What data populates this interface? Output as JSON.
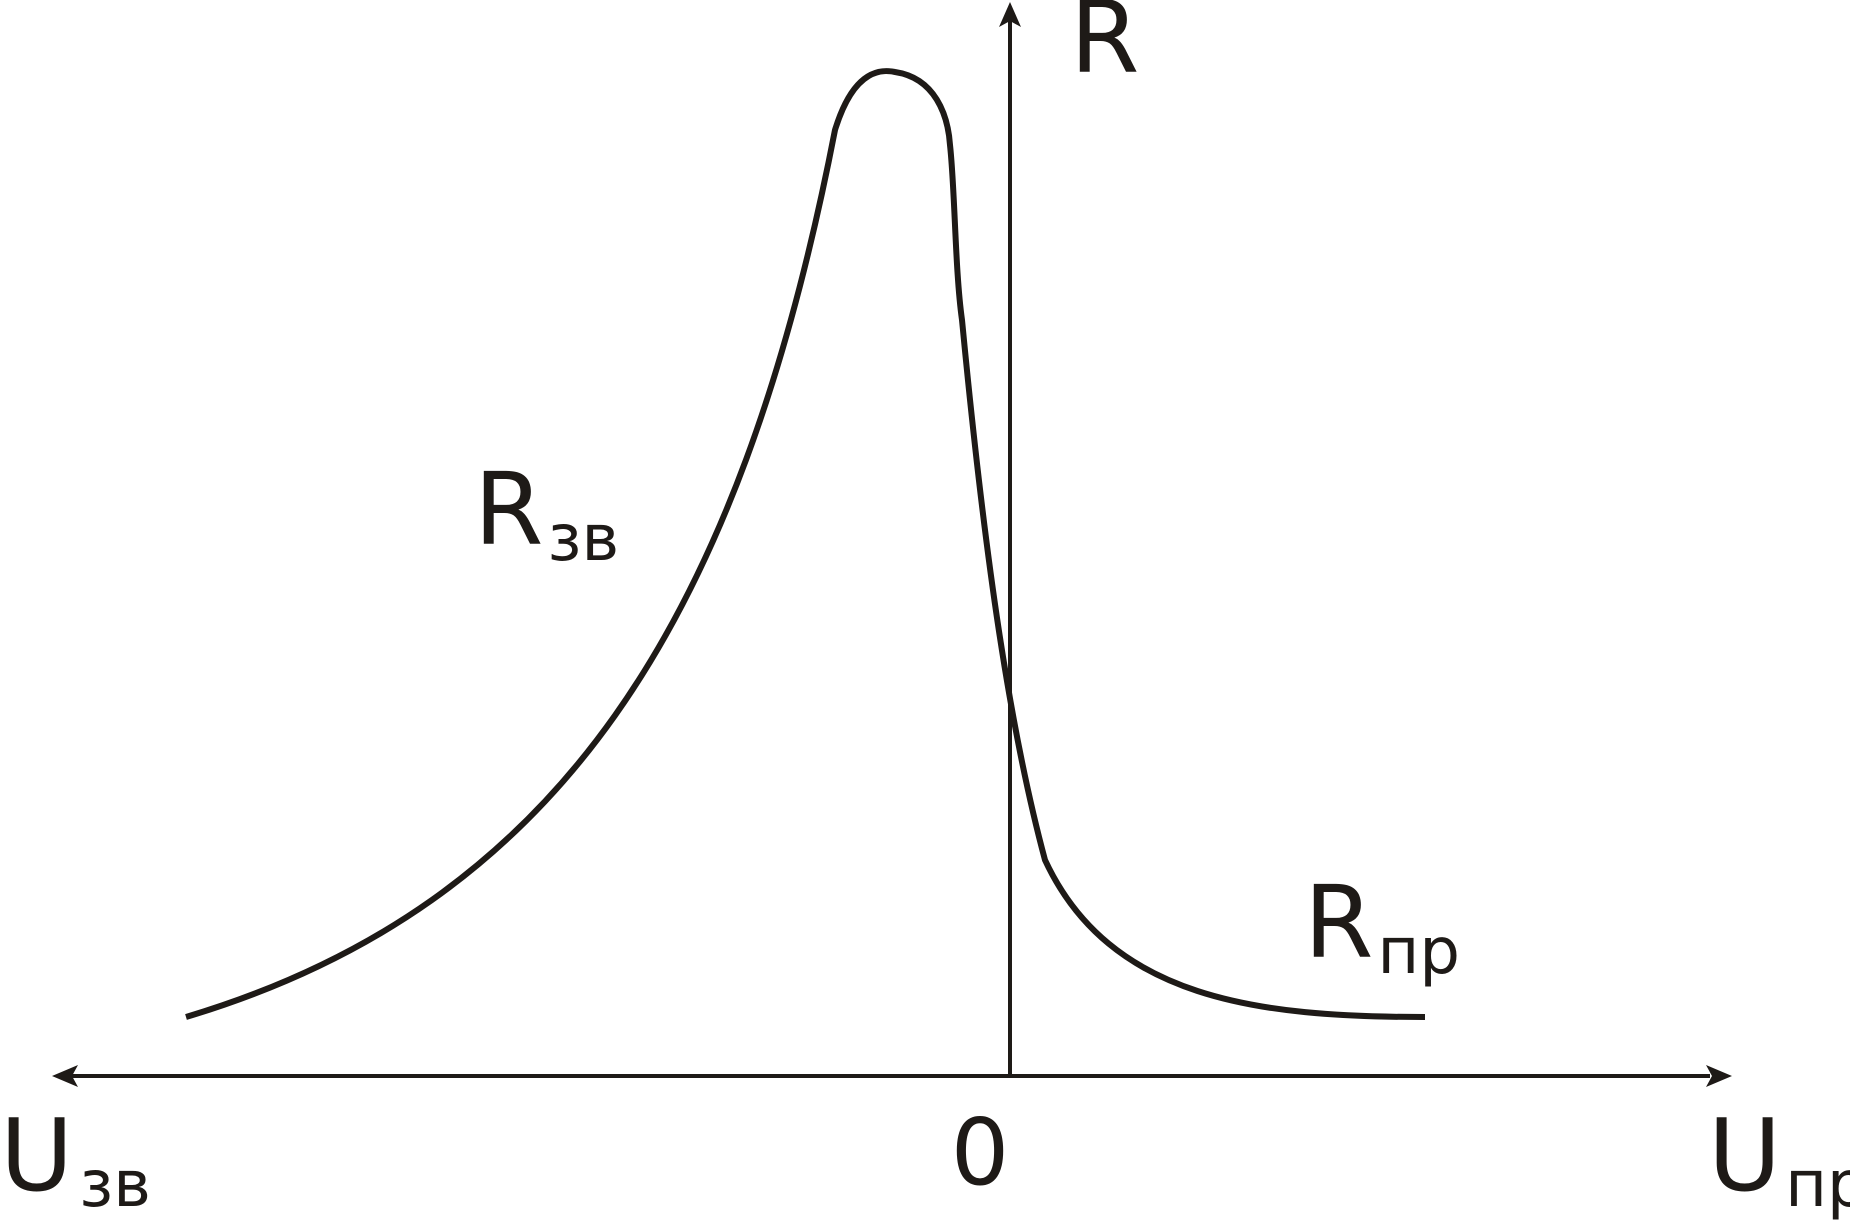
{
  "colors": {
    "ink": "#1e1a17",
    "background": "#ffffff"
  },
  "axes": {
    "y_label": "R",
    "origin_label": "0",
    "x_left_label_main": "U",
    "x_left_label_sub": "зв",
    "x_right_label_main": "U",
    "x_right_label_sub": "пр"
  },
  "curve_labels": {
    "reverse_main": "R",
    "reverse_sub": "зв",
    "forward_main": "R",
    "forward_sub": "пр"
  }
}
